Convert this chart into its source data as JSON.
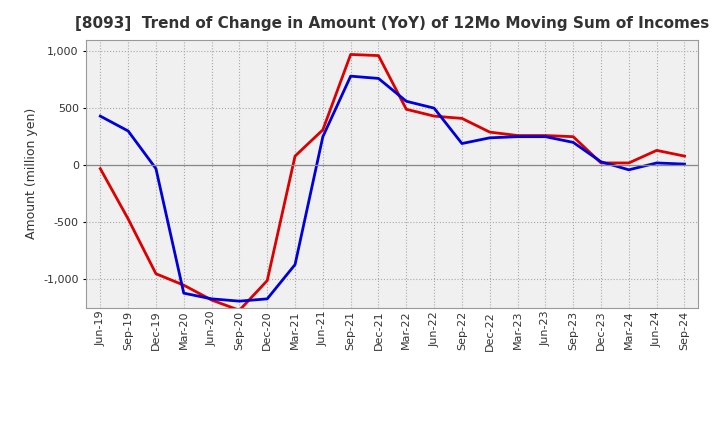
{
  "title": "[8093]  Trend of Change in Amount (YoY) of 12Mo Moving Sum of Incomes",
  "xlabel": "",
  "ylabel": "Amount (million yen)",
  "ylim": [
    -1250,
    1100
  ],
  "yticks": [
    -1000,
    -500,
    0,
    500,
    1000
  ],
  "plot_bg_color": "#f0f0f0",
  "fig_bg_color": "#ffffff",
  "grid_color": "#aaaaaa",
  "labels": [
    "Jun-19",
    "Sep-19",
    "Dec-19",
    "Mar-20",
    "Jun-20",
    "Sep-20",
    "Dec-20",
    "Mar-21",
    "Jun-21",
    "Sep-21",
    "Dec-21",
    "Mar-22",
    "Jun-22",
    "Sep-22",
    "Dec-22",
    "Mar-23",
    "Jun-23",
    "Sep-23",
    "Dec-23",
    "Mar-24",
    "Jun-24",
    "Sep-24"
  ],
  "ordinary_income": [
    430,
    300,
    -30,
    -1120,
    -1170,
    -1190,
    -1170,
    -870,
    250,
    780,
    760,
    560,
    500,
    190,
    240,
    250,
    250,
    200,
    30,
    -40,
    20,
    10
  ],
  "net_income": [
    -30,
    -470,
    -950,
    -1050,
    -1180,
    -1270,
    -1010,
    80,
    310,
    970,
    960,
    490,
    430,
    410,
    290,
    260,
    260,
    250,
    20,
    20,
    130,
    80
  ],
  "ordinary_income_color": "#0000dd",
  "net_income_color": "#dd0000",
  "line_width": 2.0,
  "title_fontsize": 11,
  "tick_fontsize": 8,
  "ylabel_fontsize": 9,
  "legend_fontsize": 9
}
